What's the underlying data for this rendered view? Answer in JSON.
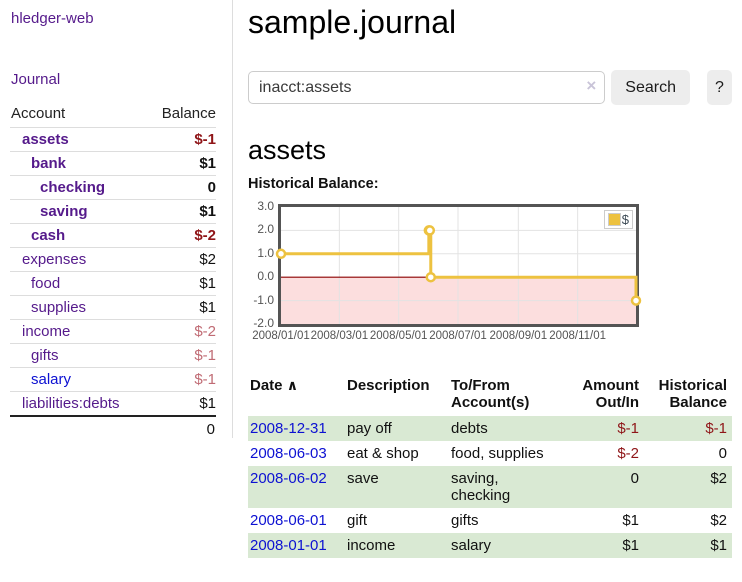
{
  "colors": {
    "link_purple": "#551a8b",
    "link_blue": "#0d11d2",
    "negative_strong": "#8f1518",
    "negative_soft": "#c06b74",
    "stripe_green": "#d9e9d3",
    "chart_line": "#edc240",
    "chart_negative_bg": "#fcdede",
    "chart_zero_line": "#8b0000"
  },
  "sidebar": {
    "brand": "hledger-web",
    "journal_label": "Journal",
    "table": {
      "account_header": "Account",
      "balance_header": "Balance",
      "total": "0",
      "accounts": [
        {
          "name": "assets",
          "balance": "$-1",
          "depth": 0,
          "bold": true
        },
        {
          "name": "bank",
          "balance": "$1",
          "depth": 1,
          "bold": true
        },
        {
          "name": "checking",
          "balance": "0",
          "depth": 2,
          "bold": true
        },
        {
          "name": "saving",
          "balance": "$1",
          "depth": 2,
          "bold": true
        },
        {
          "name": "cash",
          "balance": "$-2",
          "depth": 1,
          "bold": true
        },
        {
          "name": "expenses",
          "balance": "$2",
          "depth": 0,
          "bold": false
        },
        {
          "name": "food",
          "balance": "$1",
          "depth": 1,
          "bold": false
        },
        {
          "name": "supplies",
          "balance": "$1",
          "depth": 1,
          "bold": false
        },
        {
          "name": "income",
          "balance": "$-2",
          "depth": 0,
          "bold": false
        },
        {
          "name": "gifts",
          "balance": "$-1",
          "depth": 1,
          "bold": false
        },
        {
          "name": "salary",
          "balance": "$-1",
          "depth": 1,
          "bold": false,
          "link_color": "blue"
        },
        {
          "name": "liabilities:debts",
          "balance": "$1",
          "depth": 0,
          "bold": false
        }
      ]
    }
  },
  "main": {
    "title": "sample.journal",
    "search": {
      "value": "inacct:assets",
      "clear_icon": "×",
      "button_label": "Search",
      "help_label": "?"
    },
    "account_heading": "assets",
    "chart_label": "Historical Balance:"
  },
  "chart_data": {
    "type": "line",
    "step": true,
    "series": [
      {
        "name": "$",
        "points": [
          [
            "2008-01-01",
            1
          ],
          [
            "2008-06-01",
            2
          ],
          [
            "2008-06-02",
            2
          ],
          [
            "2008-06-03",
            0
          ],
          [
            "2008-12-31",
            -1
          ]
        ]
      }
    ],
    "x_range": [
      "2008-01-01",
      "2008-12-31"
    ],
    "xticks": [
      "2008/01/01",
      "2008/03/01",
      "2008/05/01",
      "2008/07/01",
      "2008/09/01",
      "2008/11/01"
    ],
    "yticks": [
      3.0,
      2.0,
      1.0,
      0.0,
      -1.0,
      -2.0
    ],
    "ylim": [
      -2,
      3
    ],
    "grid": true,
    "legend": {
      "label": "$",
      "position": "top-right"
    },
    "negative_region_shaded": true
  },
  "register": {
    "headers": {
      "date": "Date",
      "sort_icon": "∧",
      "description": "Description",
      "accounts": "To/From Account(s)",
      "amount": "Amount Out/In",
      "balance": "Historical Balance"
    },
    "rows": [
      {
        "date": "2008-12-31",
        "description": "pay off",
        "accounts": "debts",
        "amount": "$-1",
        "balance": "$-1"
      },
      {
        "date": "2008-06-03",
        "description": "eat & shop",
        "accounts": "food, supplies",
        "amount": "$-2",
        "balance": "0"
      },
      {
        "date": "2008-06-02",
        "description": "save",
        "accounts": "saving, checking",
        "amount": "0",
        "balance": "$2"
      },
      {
        "date": "2008-06-01",
        "description": "gift",
        "accounts": "gifts",
        "amount": "$1",
        "balance": "$2"
      },
      {
        "date": "2008-01-01",
        "description": "income",
        "accounts": "salary",
        "amount": "$1",
        "balance": "$1"
      }
    ]
  }
}
